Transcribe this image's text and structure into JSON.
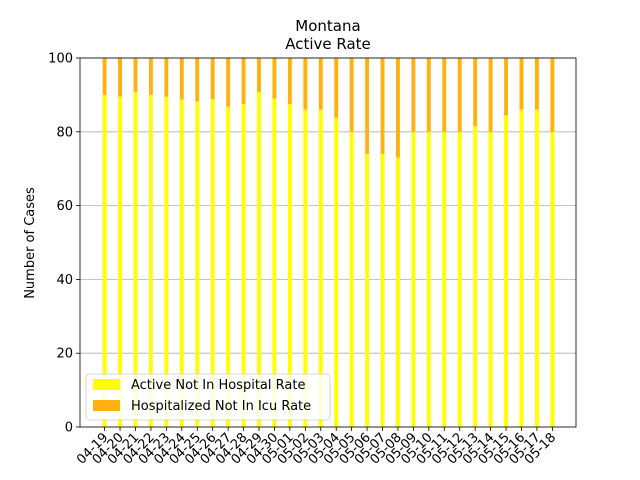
{
  "chart_data": {
    "type": "bar",
    "stacked": true,
    "title": "Montana",
    "subtitle": "Active Rate",
    "xlabel": "",
    "ylabel": "Number of Cases",
    "ylim": [
      0,
      100
    ],
    "yticks": [
      0,
      20,
      40,
      60,
      80,
      100
    ],
    "grid": "y",
    "legend_position": "lower-left",
    "categories": [
      "04-19",
      "04-20",
      "04-21",
      "04-22",
      "04-23",
      "04-24",
      "04-25",
      "04-26",
      "04-27",
      "04-28",
      "04-29",
      "04-30",
      "05-01",
      "05-02",
      "05-03",
      "05-04",
      "05-05",
      "05-06",
      "05-07",
      "05-08",
      "05-09",
      "05-10",
      "05-11",
      "05-12",
      "05-13",
      "05-14",
      "05-15",
      "05-16",
      "05-17",
      "05-18"
    ],
    "series": [
      {
        "name": "Active Not In Hospital Rate",
        "color": "#ffff00",
        "values": [
          90.0,
          89.5,
          90.8,
          90.0,
          89.5,
          88.8,
          88.2,
          88.8,
          86.8,
          87.5,
          90.8,
          89.0,
          87.5,
          86.0,
          86.0,
          83.8,
          80.0,
          74.0,
          74.0,
          73.0,
          80.0,
          80.0,
          80.0,
          80.0,
          81.5,
          80.0,
          84.5,
          86.0,
          86.0,
          80.0
        ]
      },
      {
        "name": "Hospitalized Not In Icu Rate",
        "color": "#ffb20f",
        "values": [
          10.0,
          10.5,
          9.2,
          10.0,
          10.5,
          11.2,
          11.8,
          11.2,
          13.2,
          12.5,
          9.2,
          11.0,
          12.5,
          14.0,
          14.0,
          16.2,
          20.0,
          26.0,
          26.0,
          27.0,
          20.0,
          20.0,
          20.0,
          20.0,
          18.5,
          20.0,
          15.5,
          14.0,
          14.0,
          20.0
        ]
      }
    ]
  }
}
